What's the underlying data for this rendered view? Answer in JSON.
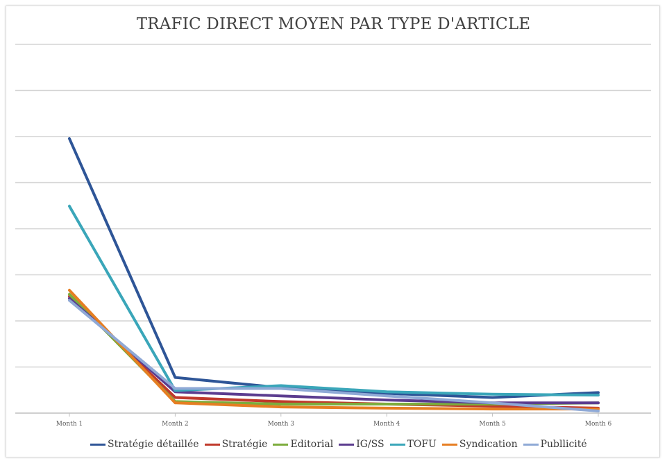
{
  "chart_data": {
    "type": "line",
    "title": "TRAFIC DIRECT MOYEN PAR TYPE D'ARTICLE",
    "xlabel": "",
    "ylabel": "",
    "x": [
      "Month 1",
      "Month 2",
      "Month 3",
      "Month 4",
      "Month 5",
      "Month 6"
    ],
    "ylim": [
      0,
      9
    ],
    "grid": true,
    "legend_position": "bottom",
    "series": [
      {
        "name": "Stratégie détaillée",
        "color": "#2e5597",
        "values": [
          6.7,
          0.87,
          0.62,
          0.48,
          0.38,
          0.5
        ]
      },
      {
        "name": "Stratégie",
        "color": "#c0392b",
        "values": [
          2.85,
          0.38,
          0.28,
          0.22,
          0.17,
          0.12
        ]
      },
      {
        "name": "Editorial",
        "color": "#7cac3c",
        "values": [
          2.9,
          0.28,
          0.22,
          0.22,
          0.22,
          0.25
        ]
      },
      {
        "name": "IG/SS",
        "color": "#5b3c8f",
        "values": [
          2.8,
          0.52,
          0.42,
          0.32,
          0.25,
          0.25
        ]
      },
      {
        "name": "TOFU",
        "color": "#3aa6b9",
        "values": [
          5.05,
          0.55,
          0.67,
          0.52,
          0.46,
          0.44
        ]
      },
      {
        "name": "Syndication",
        "color": "#e67e22",
        "values": [
          3.0,
          0.25,
          0.15,
          0.12,
          0.1,
          0.1
        ]
      },
      {
        "name": "Publlicité",
        "color": "#8fa9d6",
        "values": [
          2.75,
          0.6,
          0.6,
          0.42,
          0.25,
          0.05
        ]
      }
    ]
  }
}
